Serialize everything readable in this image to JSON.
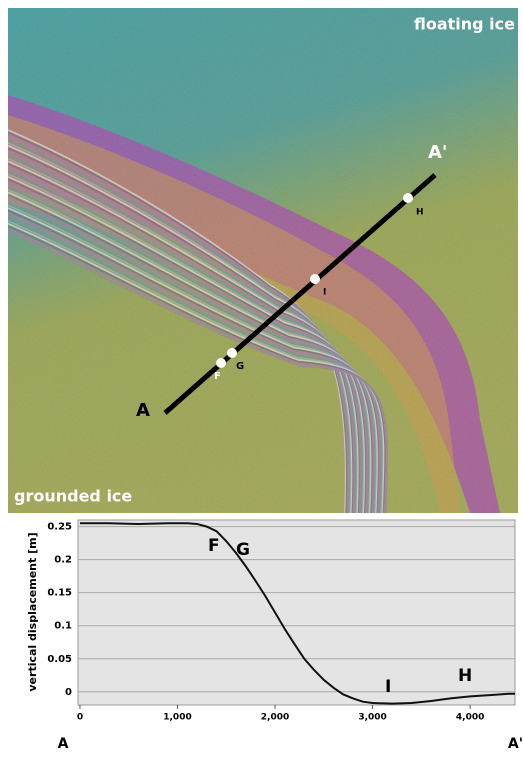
{
  "image": {
    "top_label": "floating ice",
    "bottom_label": "grounded ice",
    "profile_start": "A",
    "profile_end": "A'",
    "points": [
      "F",
      "G",
      "I",
      "H"
    ]
  },
  "chart_data": {
    "type": "line",
    "y_label": "vertical displacement [m]",
    "x": [
      0,
      300,
      600,
      900,
      1100,
      1200,
      1300,
      1400,
      1500,
      1600,
      1700,
      1800,
      1900,
      2000,
      2100,
      2200,
      2300,
      2400,
      2500,
      2600,
      2700,
      2800,
      2900,
      3000,
      3200,
      3400,
      3600,
      3800,
      4000,
      4200,
      4400,
      4460
    ],
    "series": [
      {
        "color": "#111111",
        "values": [
          0.255,
          0.255,
          0.254,
          0.255,
          0.255,
          0.254,
          0.25,
          0.243,
          0.228,
          0.21,
          0.19,
          0.168,
          0.145,
          0.12,
          0.095,
          0.072,
          0.05,
          0.033,
          0.018,
          0.006,
          -0.004,
          -0.01,
          -0.015,
          -0.017,
          -0.018,
          -0.017,
          -0.014,
          -0.01,
          -0.007,
          -0.005,
          -0.003,
          -0.003
        ]
      }
    ],
    "xlim": [
      -20,
      4460
    ],
    "ylim": [
      -0.02,
      0.26
    ],
    "xticks": [
      0,
      {
        "value": 1000,
        "label": "1,000"
      },
      {
        "value": 2000,
        "label": "2,000"
      },
      {
        "value": 3000,
        "label": "3,000"
      },
      {
        "value": 4000,
        "label": "4,000"
      }
    ],
    "yticks": [
      0,
      0.05,
      0.1,
      0.15,
      0.2,
      0.25
    ],
    "grid": true,
    "annotations": [
      "F",
      "G",
      "I",
      "H"
    ],
    "x_end_labels": [
      "A",
      "A'"
    ]
  }
}
